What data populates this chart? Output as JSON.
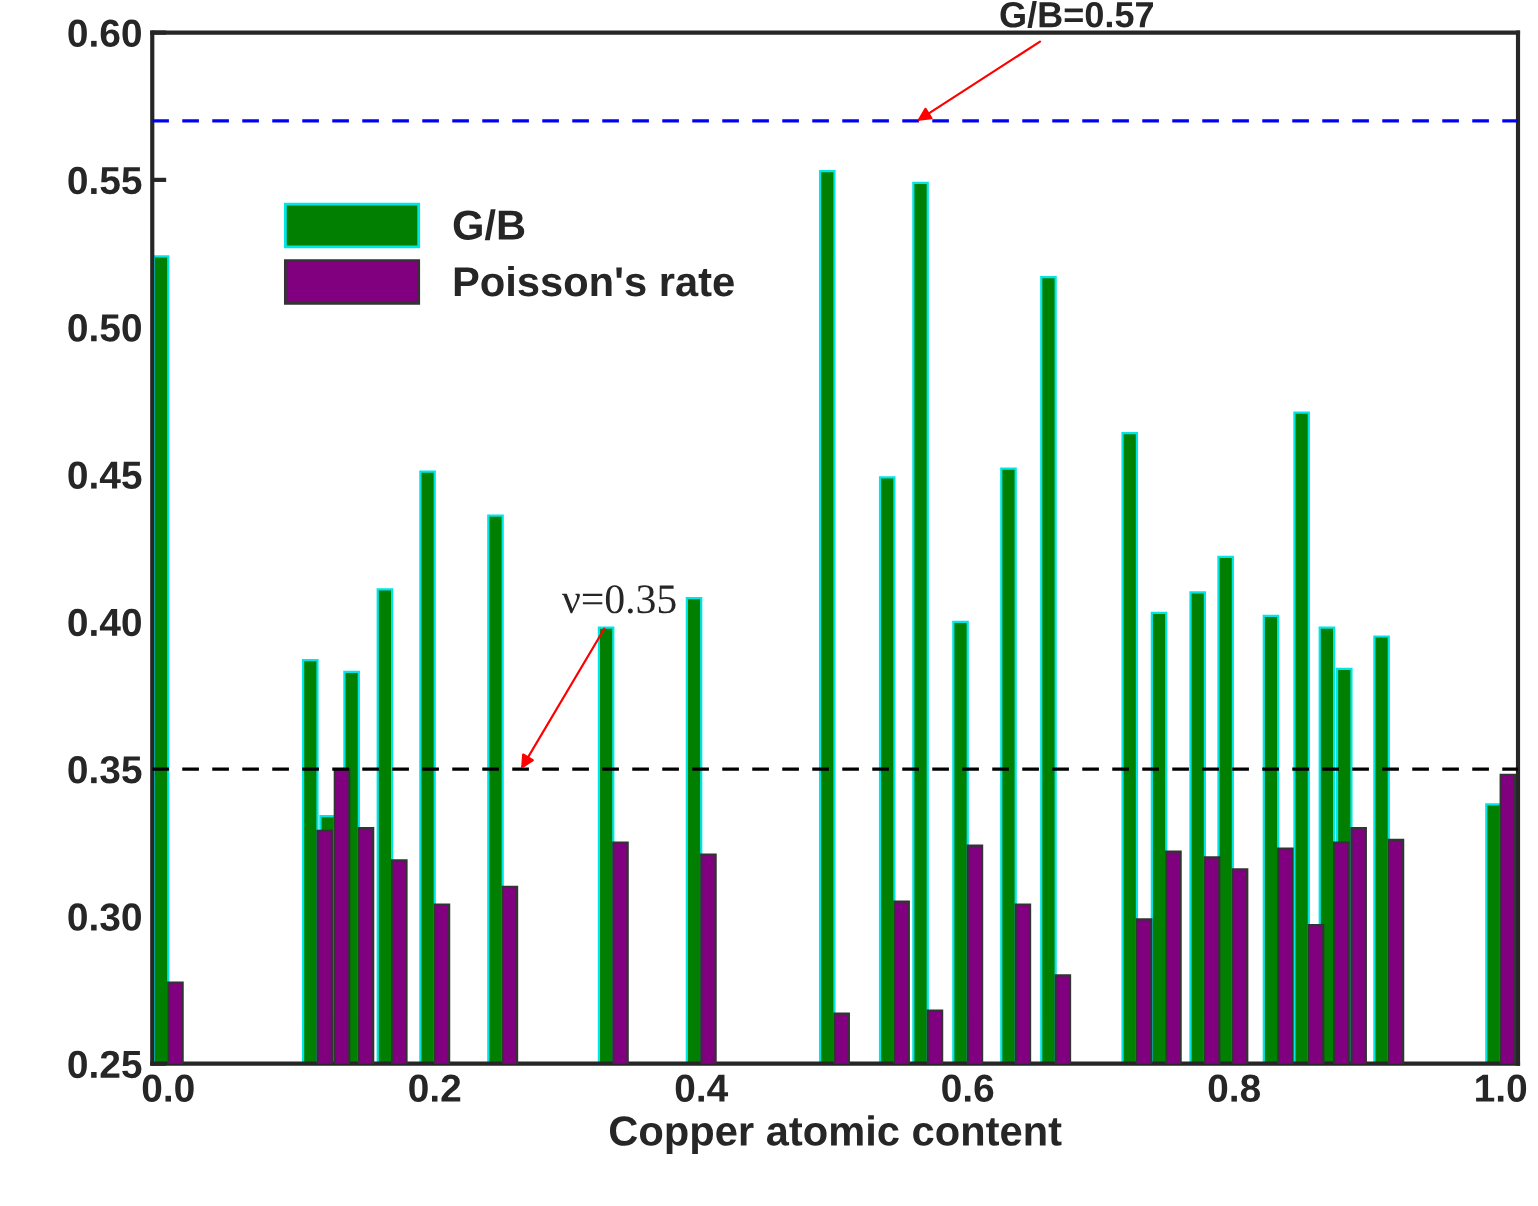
{
  "chart_data": {
    "type": "bar",
    "xlabel": "Copper atomic content",
    "x": [
      0.0,
      0.112,
      0.125,
      0.143,
      0.168,
      0.2,
      0.251,
      0.334,
      0.4,
      0.5,
      0.545,
      0.57,
      0.6,
      0.636,
      0.666,
      0.727,
      0.749,
      0.778,
      0.799,
      0.833,
      0.856,
      0.875,
      0.888,
      0.916,
      1.0
    ],
    "series": [
      {
        "name": "G/B",
        "color": "#007f00",
        "values": [
          0.524,
          0.387,
          0.334,
          0.383,
          0.411,
          0.451,
          0.436,
          0.398,
          0.408,
          0.553,
          0.449,
          0.549,
          0.4,
          0.452,
          0.517,
          0.464,
          0.403,
          0.41,
          0.422,
          0.402,
          0.471,
          0.398,
          0.384,
          0.395,
          0.338
        ]
      },
      {
        "name": "Poisson's rate",
        "color": "#800080",
        "values": [
          0.2775,
          0.329,
          0.35,
          0.33,
          0.319,
          0.304,
          0.31,
          0.325,
          0.321,
          0.267,
          0.305,
          0.268,
          0.324,
          0.304,
          0.28,
          0.299,
          0.322,
          0.32,
          0.316,
          0.323,
          0.297,
          0.325,
          0.33,
          0.326,
          0.348
        ]
      }
    ],
    "xlim": [
      -0.012,
      1.013
    ],
    "xticks": [
      {
        "value": 0.0,
        "label": "0.0"
      },
      {
        "value": 0.2,
        "label": "0.2"
      },
      {
        "value": 0.4,
        "label": "0.4"
      },
      {
        "value": 0.6,
        "label": "0.6"
      },
      {
        "value": 0.8,
        "label": "0.8"
      },
      {
        "value": 1.0,
        "label": "1.0"
      }
    ],
    "ylim": [
      0.25,
      0.6
    ],
    "yticks": [
      {
        "value": 0.25,
        "label": "0.25"
      },
      {
        "value": 0.3,
        "label": "0.30"
      },
      {
        "value": 0.35,
        "label": "0.35"
      },
      {
        "value": 0.4,
        "label": "0.40"
      },
      {
        "value": 0.45,
        "label": "0.45"
      },
      {
        "value": 0.5,
        "label": "0.50"
      },
      {
        "value": 0.55,
        "label": "0.55"
      },
      {
        "value": 0.6,
        "label": "0.60"
      }
    ],
    "ref_lines": [
      {
        "axis": "y",
        "value": 0.57,
        "label": "G/B=0.57",
        "color": "#0000ff",
        "line_style": "dashed"
      },
      {
        "axis": "y",
        "value": 0.35,
        "label": "ν=0.35",
        "color": "#000000",
        "line_style": "dashed"
      }
    ],
    "legend": "top left",
    "grid": false
  }
}
